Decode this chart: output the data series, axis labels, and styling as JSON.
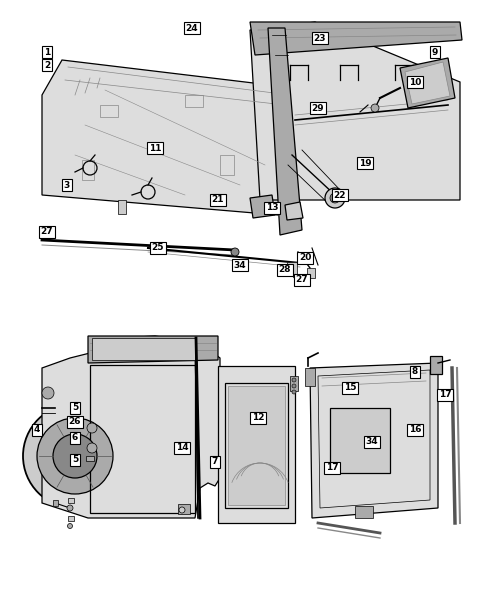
{
  "background_color": "#ffffff",
  "figsize": [
    4.85,
    5.89
  ],
  "dpi": 100,
  "label_fontsize": 6.5,
  "upper_labels": [
    [
      "1",
      47,
      52
    ],
    [
      "2",
      47,
      65
    ],
    [
      "11",
      155,
      148
    ],
    [
      "3",
      67,
      185
    ],
    [
      "27",
      47,
      232
    ],
    [
      "21",
      218,
      200
    ],
    [
      "25",
      158,
      248
    ],
    [
      "34",
      240,
      265
    ],
    [
      "13",
      272,
      208
    ],
    [
      "28",
      285,
      270
    ],
    [
      "20",
      305,
      258
    ],
    [
      "27",
      302,
      280
    ],
    [
      "22",
      340,
      195
    ],
    [
      "19",
      365,
      163
    ],
    [
      "29",
      318,
      108
    ],
    [
      "23",
      320,
      38
    ],
    [
      "24",
      192,
      28
    ],
    [
      "9",
      435,
      52
    ],
    [
      "10",
      415,
      82
    ]
  ],
  "lower_labels": [
    [
      "4",
      37,
      430
    ],
    [
      "5",
      75,
      408
    ],
    [
      "26",
      75,
      422
    ],
    [
      "6",
      75,
      438
    ],
    [
      "5",
      75,
      460
    ],
    [
      "14",
      182,
      448
    ],
    [
      "7",
      215,
      462
    ],
    [
      "12",
      258,
      418
    ],
    [
      "15",
      350,
      388
    ],
    [
      "8",
      415,
      372
    ],
    [
      "17",
      445,
      395
    ],
    [
      "16",
      415,
      430
    ],
    [
      "34",
      372,
      442
    ],
    [
      "17",
      332,
      468
    ]
  ]
}
